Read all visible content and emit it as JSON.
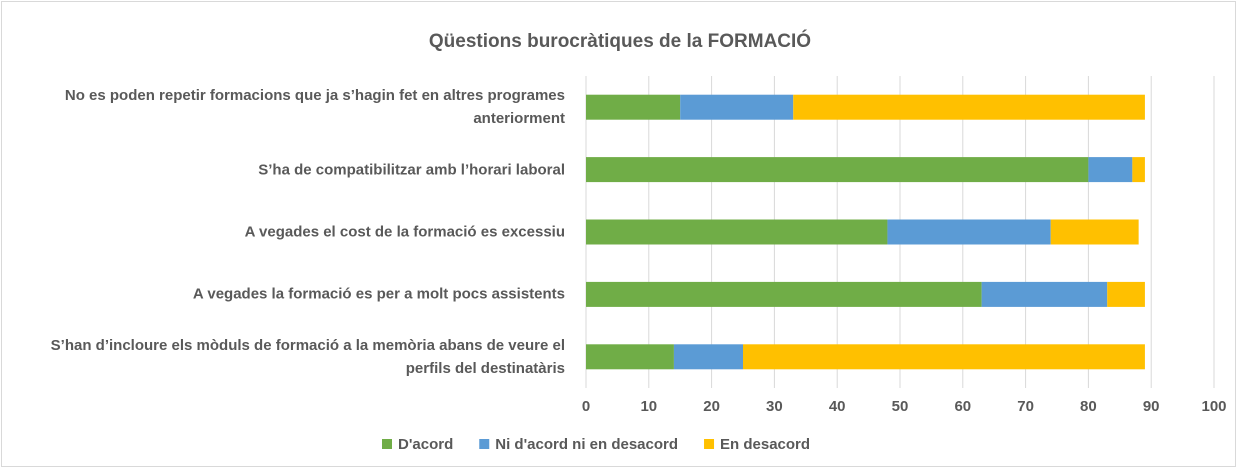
{
  "chart_data": {
    "type": "stacked_barh",
    "title": "Qüestions burocràtiques de la FORMACIÓ",
    "categories": [
      "No es poden repetir formacions que ja s’hagin fet en altres programes anteriorment",
      "S’ha de compatibilitzar amb l’horari laboral",
      "A vegades el cost de la formació es excessiu",
      "A vegades la formació es per a molt pocs assistents",
      "S’han d’incloure els mòduls de formació a la memòria abans de veure el perfils del destinatàris"
    ],
    "series": [
      {
        "name": "D'acord",
        "color": "#70ad47",
        "values": [
          15,
          80,
          48,
          63,
          14
        ]
      },
      {
        "name": "Ni d'acord ni en desacord",
        "color": "#5b9bd5",
        "values": [
          18,
          7,
          26,
          20,
          11
        ]
      },
      {
        "name": "En desacord",
        "color": "#ffc000",
        "values": [
          56,
          2,
          14,
          6,
          64
        ]
      }
    ],
    "xlim": [
      0,
      100
    ],
    "xticks": [
      0,
      10,
      20,
      30,
      40,
      50,
      60,
      70,
      80,
      90,
      100
    ],
    "grid": true,
    "legend": "bottom"
  }
}
